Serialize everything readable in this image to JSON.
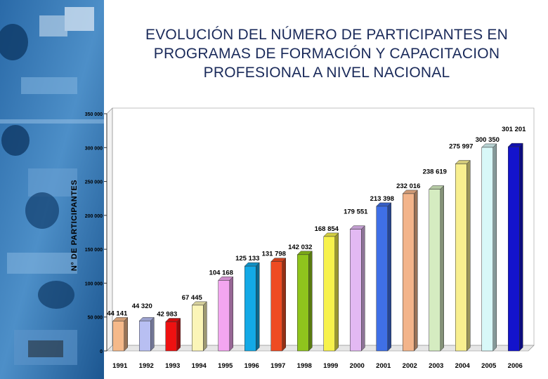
{
  "title": "EVOLUCIÓN DEL NÚMERO DE PARTICIPANTES EN PROGRAMAS DE FORMACIÓN Y CAPACITACION PROFESIONAL A NIVEL NACIONAL",
  "colors": {
    "background": "#ffffff",
    "photo_tint": "#1f5f9f",
    "title": "#1a2a5a",
    "axis_text": "#000000"
  },
  "chart_data": {
    "type": "bar",
    "title": "EVOLUCIÓN DEL NÚMERO DE PARTICIPANTES EN PROGRAMAS DE FORMACIÓN Y CAPACITACION PROFESIONAL A NIVEL NACIONAL",
    "xlabel": "",
    "ylabel": "N° DE PARTICIPANTES",
    "ylim": [
      0,
      350000
    ],
    "yticks": [
      "0",
      "50 000",
      "100 000",
      "150 000",
      "200 000",
      "250 000",
      "300 000",
      "350 000"
    ],
    "grid": false,
    "style": "3d",
    "categories": [
      "1991",
      "1992",
      "1993",
      "1994",
      "1995",
      "1996",
      "1997",
      "1998",
      "1999",
      "2000",
      "2001",
      "2002",
      "2003",
      "2004",
      "2005",
      "2006"
    ],
    "values": [
      44141,
      44320,
      42983,
      67445,
      104168,
      125133,
      131798,
      142032,
      168854,
      179551,
      213398,
      232016,
      238619,
      275997,
      300350,
      301201
    ],
    "data_labels": [
      "44 141",
      "44 320",
      "42 983",
      "67 445",
      "104 168",
      "125 133",
      "131 798",
      "142 032",
      "168 854",
      "179 551",
      "213 398",
      "232 016",
      "238 619",
      "275 997",
      "300 350",
      "301 201"
    ],
    "bar_colors": [
      "#f5b98a",
      "#b8bff2",
      "#ee1111",
      "#fbf5b8",
      "#f3a6f0",
      "#13a9e6",
      "#ee4b22",
      "#8fc41d",
      "#f7f24c",
      "#e3b9f3",
      "#3f6fe6",
      "#f3b48a",
      "#d5ecc1",
      "#f8ef8f",
      "#d8f8f8",
      "#1313cc"
    ]
  }
}
